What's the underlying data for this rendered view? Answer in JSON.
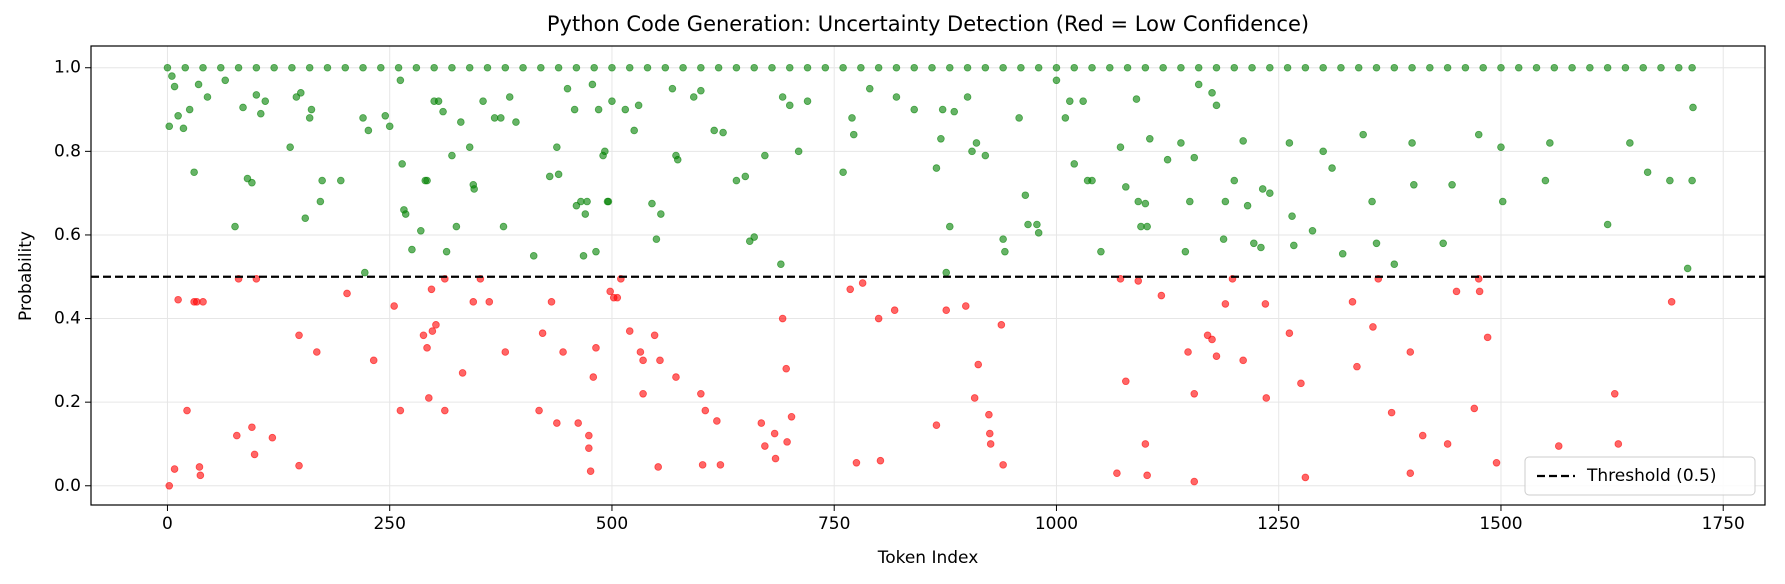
{
  "chart_data": {
    "type": "scatter",
    "title": "Python Code Generation: Uncertainty Detection (Red = Low Confidence)",
    "x_label": "Token Index",
    "y_label": "Probability",
    "xlim": [
      -86,
      1797
    ],
    "ylim": [
      -0.046,
      1.052
    ],
    "xticks": [
      0,
      250,
      500,
      750,
      1000,
      1250,
      1500,
      1750
    ],
    "yticks": [
      {
        "value": 0,
        "label": "0.0"
      },
      0.2,
      0.4,
      0.6,
      0.8,
      {
        "value": 1,
        "label": "1.0"
      }
    ],
    "grid": true,
    "threshold": {
      "value": 0.5,
      "label": "Threshold (0.5)",
      "color": "#000000"
    },
    "legend_position": "lower right",
    "series": [
      {
        "color": "#008000",
        "x": [
          2,
          5,
          8,
          12,
          18,
          25,
          30,
          35,
          45,
          65,
          76,
          85,
          90,
          95,
          100,
          105,
          110,
          138,
          145,
          150,
          155,
          160,
          162,
          172,
          174,
          195,
          220,
          222,
          226,
          245,
          250,
          262,
          264,
          266,
          268,
          275,
          285,
          290,
          292,
          300,
          305,
          310,
          314,
          320,
          325,
          330,
          340,
          344,
          345,
          355,
          368,
          375,
          378,
          385,
          392,
          412,
          430,
          438,
          440,
          450,
          458,
          460,
          465,
          468,
          470,
          472,
          478,
          482,
          485,
          490,
          492,
          495,
          496,
          500,
          515,
          525,
          530,
          545,
          550,
          555,
          568,
          572,
          574,
          592,
          600,
          615,
          625,
          640,
          650,
          655,
          660,
          672,
          690,
          692,
          700,
          710,
          720,
          760,
          770,
          772,
          790,
          820,
          840,
          865,
          870,
          872,
          876,
          880,
          885,
          900,
          905,
          910,
          920,
          940,
          942,
          958,
          965,
          968,
          978,
          980,
          1000,
          1010,
          1015,
          1020,
          1030,
          1035,
          1040,
          1050,
          1072,
          1078,
          1090,
          1092,
          1095,
          1100,
          1102,
          1105,
          1125,
          1140,
          1145,
          1150,
          1155,
          1160,
          1175,
          1180,
          1188,
          1190,
          1200,
          1210,
          1215,
          1222,
          1230,
          1232,
          1240,
          1262,
          1265,
          1267,
          1288,
          1300,
          1310,
          1322,
          1345,
          1355,
          1360,
          1380,
          1400,
          1402,
          1435,
          1445,
          1475,
          1500,
          1502,
          1550,
          1555,
          1620,
          1645,
          1665,
          1690,
          1710,
          1715,
          1716,
          0,
          20,
          40,
          60,
          80,
          100,
          120,
          140,
          160,
          180,
          200,
          220,
          240,
          260,
          280,
          300,
          320,
          340,
          360,
          380,
          400,
          420,
          440,
          460,
          480,
          500,
          520,
          540,
          560,
          580,
          600,
          620,
          640,
          660,
          680,
          700,
          720,
          740,
          760,
          780,
          800,
          820,
          840,
          860,
          880,
          900,
          920,
          940,
          960,
          980,
          1000,
          1020,
          1040,
          1060,
          1080,
          1100,
          1120,
          1140,
          1160,
          1180,
          1200,
          1220,
          1240,
          1260,
          1280,
          1300,
          1320,
          1340,
          1360,
          1380,
          1400,
          1420,
          1440,
          1460,
          1480,
          1500,
          1520,
          1540,
          1560,
          1580,
          1600,
          1620,
          1640,
          1660,
          1680,
          1700,
          1715
        ],
        "values": [
          0.86,
          0.98,
          0.955,
          0.885,
          0.855,
          0.9,
          0.75,
          0.96,
          0.93,
          0.97,
          0.62,
          0.905,
          0.735,
          0.725,
          0.935,
          0.89,
          0.92,
          0.81,
          0.93,
          0.94,
          0.64,
          0.88,
          0.9,
          0.68,
          0.73,
          0.73,
          0.88,
          0.51,
          0.85,
          0.885,
          0.86,
          0.97,
          0.77,
          0.66,
          0.65,
          0.565,
          0.61,
          0.73,
          0.73,
          0.92,
          0.92,
          0.895,
          0.56,
          0.79,
          0.62,
          0.87,
          0.81,
          0.72,
          0.71,
          0.92,
          0.88,
          0.88,
          0.62,
          0.93,
          0.87,
          0.55,
          0.74,
          0.81,
          0.745,
          0.95,
          0.9,
          0.67,
          0.68,
          0.55,
          0.65,
          0.68,
          0.96,
          0.56,
          0.9,
          0.79,
          0.8,
          0.68,
          0.68,
          0.92,
          0.9,
          0.85,
          0.91,
          0.675,
          0.59,
          0.65,
          0.95,
          0.79,
          0.78,
          0.93,
          0.945,
          0.85,
          0.845,
          0.73,
          0.74,
          0.585,
          0.595,
          0.79,
          0.53,
          0.93,
          0.91,
          0.8,
          0.92,
          0.75,
          0.88,
          0.84,
          0.95,
          0.93,
          0.9,
          0.76,
          0.83,
          0.9,
          0.51,
          0.62,
          0.895,
          0.93,
          0.8,
          0.82,
          0.79,
          0.59,
          0.56,
          0.88,
          0.695,
          0.625,
          0.625,
          0.605,
          0.97,
          0.88,
          0.92,
          0.77,
          0.92,
          0.73,
          0.73,
          0.56,
          0.81,
          0.715,
          0.925,
          0.68,
          0.62,
          0.675,
          0.62,
          0.83,
          0.78,
          0.82,
          0.56,
          0.68,
          0.785,
          0.96,
          0.94,
          0.91,
          0.59,
          0.68,
          0.73,
          0.825,
          0.67,
          0.58,
          0.57,
          0.71,
          0.7,
          0.82,
          0.645,
          0.575,
          0.61,
          0.8,
          0.76,
          0.555,
          0.84,
          0.68,
          0.58,
          0.53,
          0.82,
          0.72,
          0.58,
          0.72,
          0.84,
          0.81,
          0.68,
          0.73,
          0.82,
          0.625,
          0.82,
          0.75,
          0.73,
          0.52,
          0.73,
          0.905,
          1,
          1,
          1,
          1,
          1,
          1,
          1,
          1,
          1,
          1,
          1,
          1,
          1,
          1,
          1,
          1,
          1,
          1,
          1,
          1,
          1,
          1,
          1,
          1,
          1,
          1,
          1,
          1,
          1,
          1,
          1,
          1,
          1,
          1,
          1,
          1,
          1,
          1,
          1,
          1,
          1,
          1,
          1,
          1,
          1,
          1,
          1,
          1,
          1,
          1,
          1,
          1,
          1,
          1,
          1,
          1,
          1,
          1,
          1,
          1,
          1,
          1,
          1,
          1,
          1,
          1,
          1,
          1,
          1,
          1,
          1,
          1,
          1,
          1,
          1,
          1,
          1,
          1,
          1,
          1,
          1,
          1,
          1,
          1,
          1,
          1,
          1
        ]
      },
      {
        "color": "#ff0000",
        "x": [
          2,
          8,
          12,
          22,
          30,
          33,
          36,
          37,
          40,
          78,
          80,
          95,
          98,
          100,
          118,
          148,
          148,
          168,
          202,
          232,
          255,
          262,
          288,
          292,
          294,
          297,
          298,
          302,
          312,
          312,
          332,
          344,
          352,
          362,
          380,
          418,
          422,
          432,
          438,
          445,
          462,
          474,
          474,
          476,
          479,
          482,
          498,
          502,
          506,
          510,
          520,
          532,
          535,
          535,
          548,
          552,
          554,
          572,
          600,
          602,
          605,
          618,
          622,
          668,
          672,
          683,
          684,
          692,
          696,
          697,
          702,
          768,
          775,
          782,
          800,
          802,
          818,
          865,
          876,
          898,
          908,
          912,
          924,
          925,
          926,
          938,
          940,
          1068,
          1072,
          1078,
          1092,
          1100,
          1102,
          1118,
          1148,
          1155,
          1155,
          1170,
          1175,
          1180,
          1190,
          1198,
          1210,
          1235,
          1236,
          1262,
          1275,
          1280,
          1333,
          1338,
          1356,
          1362,
          1377,
          1398,
          1398,
          1412,
          1440,
          1450,
          1470,
          1475,
          1476,
          1485,
          1495,
          1565,
          1628,
          1632,
          1692
        ],
        "values": [
          0,
          0.04,
          0.445,
          0.18,
          0.44,
          0.44,
          0.045,
          0.025,
          0.44,
          0.12,
          0.495,
          0.14,
          0.075,
          0.495,
          0.115,
          0.36,
          0.048,
          0.32,
          0.46,
          0.3,
          0.43,
          0.18,
          0.36,
          0.33,
          0.21,
          0.47,
          0.37,
          0.385,
          0.18,
          0.495,
          0.27,
          0.44,
          0.495,
          0.44,
          0.32,
          0.18,
          0.365,
          0.44,
          0.15,
          0.32,
          0.15,
          0.12,
          0.09,
          0.035,
          0.26,
          0.33,
          0.465,
          0.45,
          0.45,
          0.495,
          0.37,
          0.32,
          0.3,
          0.22,
          0.36,
          0.045,
          0.3,
          0.26,
          0.22,
          0.05,
          0.18,
          0.155,
          0.05,
          0.15,
          0.095,
          0.125,
          0.065,
          0.4,
          0.28,
          0.105,
          0.165,
          0.47,
          0.055,
          0.485,
          0.4,
          0.06,
          0.42,
          0.145,
          0.42,
          0.43,
          0.21,
          0.29,
          0.17,
          0.125,
          0.1,
          0.385,
          0.05,
          0.03,
          0.495,
          0.25,
          0.49,
          0.1,
          0.025,
          0.455,
          0.32,
          0.22,
          0.01,
          0.36,
          0.35,
          0.31,
          0.435,
          0.495,
          0.3,
          0.435,
          0.21,
          0.365,
          0.245,
          0.02,
          0.44,
          0.285,
          0.38,
          0.495,
          0.175,
          0.32,
          0.03,
          0.12,
          0.1,
          0.465,
          0.185,
          0.495,
          0.465,
          0.355,
          0.055,
          0.095,
          0.22,
          0.1,
          0.44
        ]
      }
    ]
  }
}
